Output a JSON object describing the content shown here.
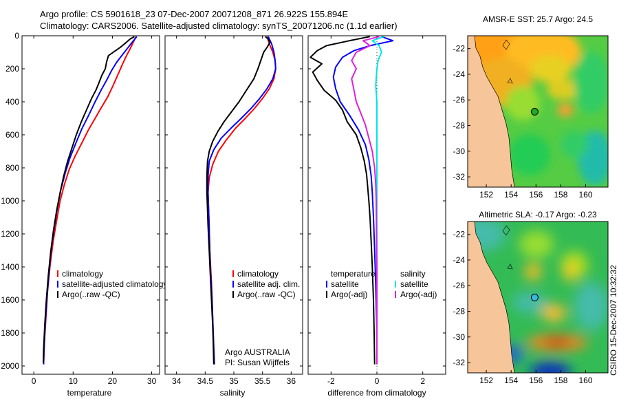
{
  "title_line1": "Argo profile: CS 5901618_23 07-Dec-2007 20071208_871 26.922S 155.894E",
  "title_line2": "Climatology: CARS2006. Satellite-adjusted climatology: synTS_20071206.nc (1.1d earlier)",
  "footer_vertical": "CSIRO 15-Dec-2007 10:32:32",
  "colors": {
    "climatology": "#ff0000",
    "satellite": "#0000ff",
    "argo": "#000000",
    "satellite_salinity": "#00e5e5",
    "argo_salinity": "#e020e0"
  },
  "chart_data": [
    {
      "type": "line",
      "xlabel": "temperature",
      "xlim": [
        -3,
        32
      ],
      "xticks": [
        0,
        10,
        20,
        30
      ],
      "ylim": [
        2050,
        0
      ],
      "yticks": [
        0,
        200,
        400,
        600,
        800,
        1000,
        1200,
        1400,
        1600,
        1800,
        2000
      ],
      "legend": [
        "climatology",
        "satellite-adjusted climatology",
        "Argo(..raw -QC)"
      ],
      "series": [
        {
          "name": "climatology",
          "color": "#ff0000",
          "points": [
            [
              26.0,
              5
            ],
            [
              25.3,
              40
            ],
            [
              24.5,
              80
            ],
            [
              23.6,
              120
            ],
            [
              22.6,
              170
            ],
            [
              21.5,
              230
            ],
            [
              20.2,
              300
            ],
            [
              18.8,
              370
            ],
            [
              17.3,
              430
            ],
            [
              15.6,
              500
            ],
            [
              13.9,
              570
            ],
            [
              12.2,
              650
            ],
            [
              10.5,
              730
            ],
            [
              9.0,
              810
            ],
            [
              7.8,
              900
            ],
            [
              6.7,
              1000
            ],
            [
              5.8,
              1120
            ],
            [
              4.9,
              1250
            ],
            [
              4.1,
              1400
            ],
            [
              3.5,
              1550
            ],
            [
              3.1,
              1700
            ],
            [
              2.7,
              1850
            ],
            [
              2.5,
              1990
            ]
          ]
        },
        {
          "name": "satellite-adjusted climatology",
          "color": "#0000ff",
          "points": [
            [
              26.2,
              5
            ],
            [
              25.0,
              40
            ],
            [
              23.7,
              80
            ],
            [
              22.4,
              120
            ],
            [
              21.1,
              160
            ],
            [
              19.8,
              210
            ],
            [
              18.5,
              270
            ],
            [
              17.1,
              330
            ],
            [
              15.6,
              400
            ],
            [
              14.0,
              480
            ],
            [
              12.3,
              560
            ],
            [
              10.7,
              650
            ],
            [
              9.2,
              740
            ],
            [
              8.0,
              830
            ],
            [
              6.9,
              930
            ],
            [
              6.0,
              1040
            ],
            [
              5.2,
              1160
            ],
            [
              4.4,
              1300
            ],
            [
              3.8,
              1450
            ],
            [
              3.3,
              1600
            ],
            [
              2.9,
              1750
            ],
            [
              2.6,
              1900
            ],
            [
              2.5,
              1990
            ]
          ]
        },
        {
          "name": "Argo(..raw -QC)",
          "color": "#000000",
          "points": [
            [
              25.6,
              5
            ],
            [
              24.5,
              20
            ],
            [
              23.3,
              45
            ],
            [
              22.0,
              70
            ],
            [
              20.5,
              95
            ],
            [
              19.0,
              120
            ],
            [
              18.5,
              160
            ],
            [
              18.2,
              200
            ],
            [
              17.3,
              240
            ],
            [
              16.5,
              290
            ],
            [
              15.8,
              330
            ],
            [
              14.7,
              380
            ],
            [
              13.4,
              450
            ],
            [
              12.1,
              520
            ],
            [
              10.8,
              600
            ],
            [
              9.7,
              680
            ],
            [
              8.6,
              760
            ],
            [
              7.6,
              850
            ],
            [
              6.7,
              950
            ],
            [
              5.8,
              1060
            ],
            [
              5.0,
              1180
            ],
            [
              4.3,
              1310
            ],
            [
              3.7,
              1450
            ],
            [
              3.2,
              1600
            ],
            [
              2.8,
              1750
            ],
            [
              2.5,
              1900
            ],
            [
              2.4,
              1980
            ]
          ]
        }
      ]
    },
    {
      "type": "line",
      "xlabel": "salinity",
      "xlim": [
        33.8,
        36.2
      ],
      "xticks": [
        34,
        34.5,
        35,
        35.5,
        36
      ],
      "ylim": [
        2050,
        0
      ],
      "legend": [
        "climatology",
        "satellite adj. clim.",
        "Argo(..raw -QC)"
      ],
      "annotation": [
        "Argo AUSTRALIA",
        "PI: Susan Wijffels"
      ],
      "series": [
        {
          "name": "climatology",
          "color": "#ff0000",
          "points": [
            [
              35.58,
              5
            ],
            [
              35.62,
              50
            ],
            [
              35.68,
              100
            ],
            [
              35.72,
              150
            ],
            [
              35.73,
              200
            ],
            [
              35.7,
              260
            ],
            [
              35.62,
              320
            ],
            [
              35.5,
              380
            ],
            [
              35.36,
              440
            ],
            [
              35.2,
              500
            ],
            [
              35.03,
              560
            ],
            [
              34.87,
              630
            ],
            [
              34.73,
              700
            ],
            [
              34.63,
              780
            ],
            [
              34.57,
              860
            ],
            [
              34.55,
              950
            ],
            [
              34.56,
              1050
            ],
            [
              34.57,
              1150
            ],
            [
              34.58,
              1300
            ],
            [
              34.61,
              1500
            ],
            [
              34.63,
              1700
            ],
            [
              34.65,
              1900
            ],
            [
              34.66,
              1990
            ]
          ]
        },
        {
          "name": "satellite adj. clim.",
          "color": "#0000ff",
          "points": [
            [
              35.6,
              5
            ],
            [
              35.66,
              50
            ],
            [
              35.7,
              100
            ],
            [
              35.72,
              150
            ],
            [
              35.73,
              200
            ],
            [
              35.68,
              260
            ],
            [
              35.58,
              320
            ],
            [
              35.45,
              380
            ],
            [
              35.3,
              440
            ],
            [
              35.13,
              500
            ],
            [
              34.95,
              560
            ],
            [
              34.78,
              620
            ],
            [
              34.65,
              690
            ],
            [
              34.57,
              760
            ],
            [
              34.55,
              850
            ],
            [
              34.55,
              950
            ],
            [
              34.56,
              1050
            ],
            [
              34.57,
              1200
            ],
            [
              34.59,
              1400
            ],
            [
              34.62,
              1600
            ],
            [
              34.64,
              1800
            ],
            [
              34.66,
              1990
            ]
          ]
        },
        {
          "name": "Argo(..raw -QC)",
          "color": "#000000",
          "points": [
            [
              35.55,
              5
            ],
            [
              35.6,
              20
            ],
            [
              35.63,
              40
            ],
            [
              35.58,
              70
            ],
            [
              35.52,
              100
            ],
            [
              35.47,
              150
            ],
            [
              35.42,
              200
            ],
            [
              35.35,
              260
            ],
            [
              35.22,
              330
            ],
            [
              35.09,
              400
            ],
            [
              34.96,
              460
            ],
            [
              34.83,
              520
            ],
            [
              34.72,
              580
            ],
            [
              34.63,
              640
            ],
            [
              34.57,
              700
            ],
            [
              34.54,
              760
            ],
            [
              34.53,
              850
            ],
            [
              34.53,
              950
            ],
            [
              34.54,
              1050
            ],
            [
              34.55,
              1150
            ],
            [
              34.57,
              1300
            ],
            [
              34.59,
              1450
            ],
            [
              34.61,
              1600
            ],
            [
              34.63,
              1750
            ],
            [
              34.64,
              1850
            ],
            [
              34.65,
              1990
            ]
          ]
        }
      ]
    },
    {
      "type": "line",
      "xlabel": "difference from climatology",
      "xlim": [
        -3,
        3
      ],
      "xticks": [
        -2,
        0,
        2
      ],
      "ylim": [
        2050,
        0
      ],
      "legend_temperature": [
        "temperature",
        "satellite",
        "Argo(-adj)"
      ],
      "legend_salinity": [
        "salinity",
        "satellite",
        "Argo(-adj)"
      ],
      "series": [
        {
          "name": "satellite",
          "group": "temperature",
          "color": "#0000ff",
          "points": [
            [
              0.2,
              5
            ],
            [
              0.7,
              30
            ],
            [
              -0.3,
              60
            ],
            [
              -1.0,
              90
            ],
            [
              -1.5,
              130
            ],
            [
              -1.8,
              190
            ],
            [
              -1.9,
              250
            ],
            [
              -1.8,
              320
            ],
            [
              -1.6,
              400
            ],
            [
              -1.2,
              480
            ],
            [
              -0.8,
              570
            ],
            [
              -0.5,
              660
            ],
            [
              -0.35,
              750
            ],
            [
              -0.25,
              850
            ],
            [
              -0.2,
              950
            ],
            [
              -0.15,
              1100
            ],
            [
              -0.1,
              1300
            ],
            [
              -0.05,
              1500
            ],
            [
              0,
              1800
            ],
            [
              0,
              1990
            ]
          ]
        },
        {
          "name": "Argo(-adj)",
          "group": "temperature",
          "color": "#000000",
          "points": [
            [
              -0.3,
              5
            ],
            [
              -1.2,
              30
            ],
            [
              -2.2,
              60
            ],
            [
              -2.6,
              90
            ],
            [
              -2.9,
              130
            ],
            [
              -2.4,
              170
            ],
            [
              -2.8,
              220
            ],
            [
              -2.6,
              270
            ],
            [
              -2.3,
              330
            ],
            [
              -1.8,
              390
            ],
            [
              -1.5,
              450
            ],
            [
              -1.3,
              520
            ],
            [
              -0.9,
              600
            ],
            [
              -0.7,
              680
            ],
            [
              -0.55,
              760
            ],
            [
              -0.45,
              840
            ],
            [
              -0.4,
              920
            ],
            [
              -0.35,
              1000
            ],
            [
              -0.3,
              1100
            ],
            [
              -0.25,
              1250
            ],
            [
              -0.2,
              1400
            ],
            [
              -0.15,
              1600
            ],
            [
              -0.12,
              1800
            ],
            [
              -0.1,
              1990
            ]
          ]
        },
        {
          "name": "satellite",
          "group": "salinity",
          "color": "#00e5e5",
          "points": [
            [
              0.3,
              5
            ],
            [
              -0.2,
              30
            ],
            [
              0.1,
              60
            ],
            [
              0.2,
              100
            ],
            [
              0.05,
              150
            ],
            [
              0,
              200
            ],
            [
              -0.05,
              300
            ],
            [
              0,
              400
            ],
            [
              0,
              600
            ],
            [
              0,
              800
            ],
            [
              0,
              1000
            ],
            [
              0,
              1200
            ],
            [
              0,
              1400
            ],
            [
              0,
              1600
            ],
            [
              0,
              1800
            ],
            [
              0,
              1990
            ]
          ]
        },
        {
          "name": "Argo(-adj)",
          "group": "salinity",
          "color": "#e020e0",
          "points": [
            [
              0.1,
              5
            ],
            [
              -0.6,
              30
            ],
            [
              -0.3,
              60
            ],
            [
              -0.9,
              100
            ],
            [
              -1.1,
              150
            ],
            [
              -0.9,
              200
            ],
            [
              -1.1,
              260
            ],
            [
              -1.0,
              330
            ],
            [
              -0.9,
              400
            ],
            [
              -0.7,
              470
            ],
            [
              -0.5,
              540
            ],
            [
              -0.35,
              620
            ],
            [
              -0.2,
              700
            ],
            [
              -0.1,
              800
            ],
            [
              -0.05,
              900
            ],
            [
              -0.03,
              1000
            ],
            [
              -0.02,
              1200
            ],
            [
              0,
              1400
            ],
            [
              0,
              1600
            ],
            [
              0,
              1800
            ],
            [
              0,
              1990
            ]
          ]
        }
      ]
    },
    {
      "type": "heatmap",
      "title": "AMSR-E SST: 25.7 Argo: 24.5",
      "xlim": [
        150.5,
        161.8
      ],
      "ylim": [
        -32.8,
        -21.0
      ],
      "xticks": [
        152,
        154,
        156,
        158,
        160
      ],
      "yticks": [
        -22,
        -24,
        -26,
        -28,
        -30,
        -32
      ],
      "marker": [
        155.894,
        -26.922
      ],
      "marker_color": "#22aa22"
    },
    {
      "type": "heatmap",
      "title": "Altimetric SLA: -0.17 Argo: -0.23",
      "xlim": [
        150.5,
        161.8
      ],
      "ylim": [
        -32.8,
        -21.0
      ],
      "xticks": [
        152,
        154,
        156,
        158,
        160
      ],
      "yticks": [
        -22,
        -24,
        -26,
        -28,
        -30,
        -32
      ],
      "marker": [
        155.894,
        -26.922
      ],
      "marker_color": "#33bbdd"
    }
  ]
}
